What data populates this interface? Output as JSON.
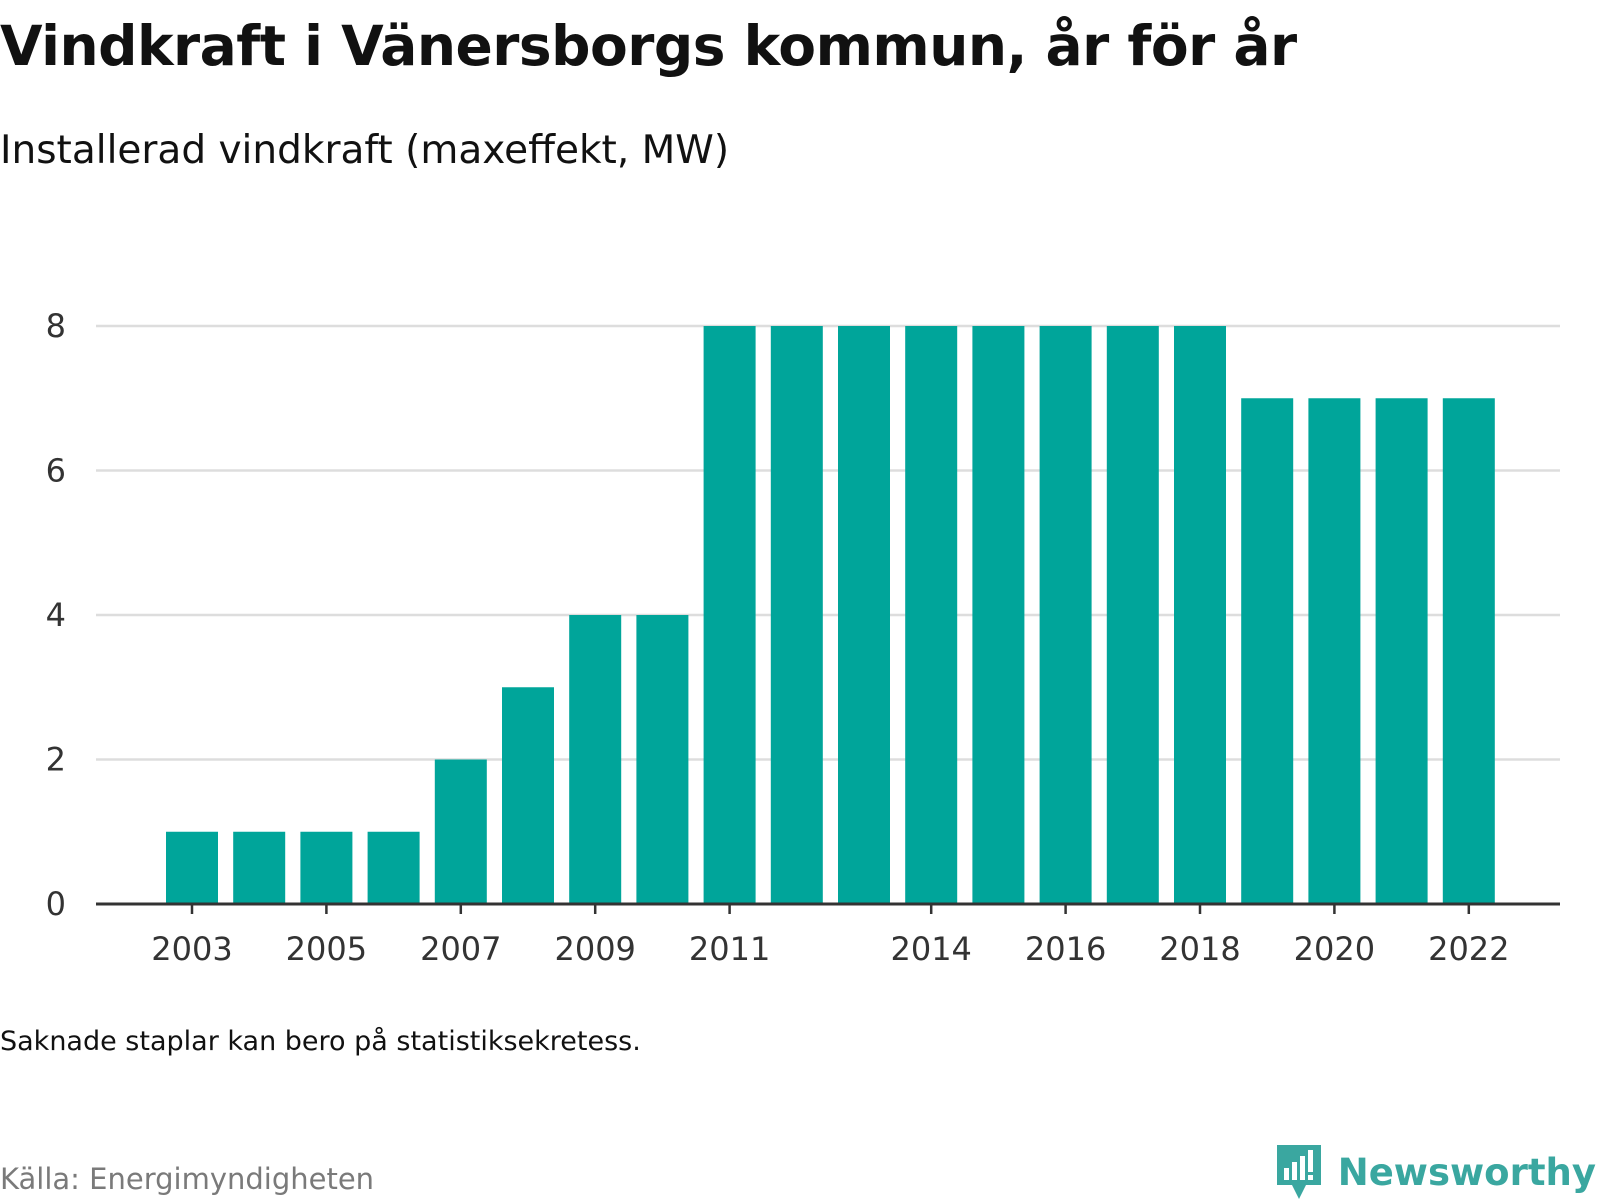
{
  "title": "Vindkraft i Vänersborgs kommun, år för år",
  "subtitle": "Installerad vindkraft (maxeffekt, MW)",
  "note": "Saknade staplar kan bero på statistiksekretess.",
  "source": "Källa: Energimyndigheten",
  "brand": {
    "name": "Newsworthy",
    "icon": "bar-chart-bubble-icon",
    "color": "#3aa7a0"
  },
  "colors": {
    "bar": "#00a59a",
    "grid": "#dddddd",
    "axis": "#333333"
  },
  "chart_data": {
    "type": "bar",
    "title": "Vindkraft i Vänersborgs kommun, år för år",
    "subtitle": "Installerad vindkraft (maxeffekt, MW)",
    "xlabel": "",
    "ylabel": "",
    "categories": [
      2003,
      2004,
      2005,
      2006,
      2007,
      2008,
      2009,
      2010,
      2011,
      2012,
      2013,
      2014,
      2015,
      2016,
      2017,
      2018,
      2019,
      2020,
      2021,
      2022
    ],
    "values": [
      1,
      1,
      1,
      1,
      2,
      3,
      4,
      4,
      8,
      8,
      8,
      8,
      8,
      8,
      8,
      8,
      7,
      7,
      7,
      7
    ],
    "x_ticks": [
      2003,
      2005,
      2007,
      2009,
      2011,
      2014,
      2016,
      2018,
      2020,
      2022
    ],
    "y_ticks": [
      0,
      2,
      4,
      6,
      8
    ],
    "ylim": [
      0,
      8
    ],
    "grid": true,
    "legend": "none"
  }
}
